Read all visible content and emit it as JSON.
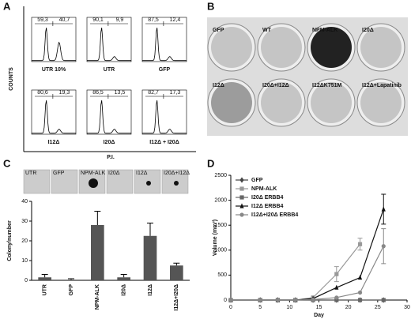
{
  "panel_labels": [
    "A",
    "B",
    "C",
    "D"
  ],
  "panel_a": {
    "ylabel": "COUNTS",
    "xlabel": "P.I.",
    "histograms": [
      {
        "label": "UTR 10%",
        "left": "59,3",
        "right": "40,7"
      },
      {
        "label": "UTR",
        "left": "90,1",
        "right": "9,9"
      },
      {
        "label": "GFP",
        "left": "87,5",
        "right": "12,4"
      },
      {
        "label": "I12Δ",
        "left": "80,6",
        "right": "19,3"
      },
      {
        "label": "I20Δ",
        "left": "86,5",
        "right": "13,5"
      },
      {
        "label": "I12Δ + I20Δ",
        "left": "82,7",
        "right": "17,3"
      }
    ]
  },
  "panel_b": {
    "plates": [
      "GFP",
      "WT",
      "NPM-ALK",
      "I20Δ",
      "I12Δ",
      "I20Δ+I12Δ",
      "I12ΔK751M",
      "I12Δ+Lapatinib"
    ]
  },
  "panel_c_images": [
    "UTR",
    "GFP",
    "NPM-ALK",
    "I20Δ",
    "I12Δ",
    "I20Δ+I12Δ"
  ],
  "chart_data": [
    {
      "type": "bar",
      "ylabel": "Colony/number",
      "categories": [
        "UTR",
        "GFP",
        "NPM-ALK",
        "I20Δ",
        "I12Δ",
        "I12Δ+I20Δ"
      ],
      "values": [
        1.5,
        0.3,
        28,
        1.5,
        22.5,
        7.5
      ],
      "errors": [
        1.5,
        0.5,
        7,
        1.5,
        6.5,
        1.2
      ],
      "color": "#555555",
      "ylim": [
        0,
        40
      ],
      "yticks": [
        0,
        10,
        20,
        30,
        40
      ]
    },
    {
      "type": "line",
      "xlabel": "Day",
      "ylabel": "Volume (mm³)",
      "x": [
        0,
        5,
        8,
        11,
        14,
        18,
        22,
        26
      ],
      "series": [
        {
          "name": "GFP",
          "color": "#444444",
          "marker": "diamond",
          "values": [
            0,
            0,
            0,
            0,
            0,
            0,
            0,
            0
          ]
        },
        {
          "name": "NPM-ALK",
          "color": "#999999",
          "marker": "square",
          "values": [
            0,
            0,
            0,
            0,
            50,
            520,
            1120,
            null
          ],
          "errors": [
            null,
            null,
            null,
            null,
            null,
            150,
            120,
            null
          ]
        },
        {
          "name": "I20Δ ERBB4",
          "color": "#666666",
          "marker": "square",
          "values": [
            0,
            0,
            0,
            0,
            0,
            0,
            0,
            0
          ]
        },
        {
          "name": "I12Δ ERBB4",
          "color": "#111111",
          "marker": "triangle",
          "values": [
            0,
            0,
            0,
            0,
            30,
            250,
            450,
            1820
          ],
          "errors": [
            null,
            null,
            null,
            null,
            null,
            null,
            null,
            300
          ]
        },
        {
          "name": "I12Δ+I20Δ ERBB4",
          "color": "#888888",
          "marker": "circle",
          "values": [
            0,
            0,
            0,
            0,
            10,
            50,
            150,
            1080
          ],
          "errors": [
            null,
            null,
            null,
            null,
            null,
            null,
            null,
            350
          ]
        }
      ],
      "xlim": [
        0,
        30
      ],
      "xticks": [
        0,
        5,
        10,
        15,
        20,
        25,
        30
      ],
      "ylim": [
        0,
        2500
      ],
      "yticks": [
        0,
        500,
        1000,
        1500,
        2000,
        2500
      ]
    }
  ]
}
